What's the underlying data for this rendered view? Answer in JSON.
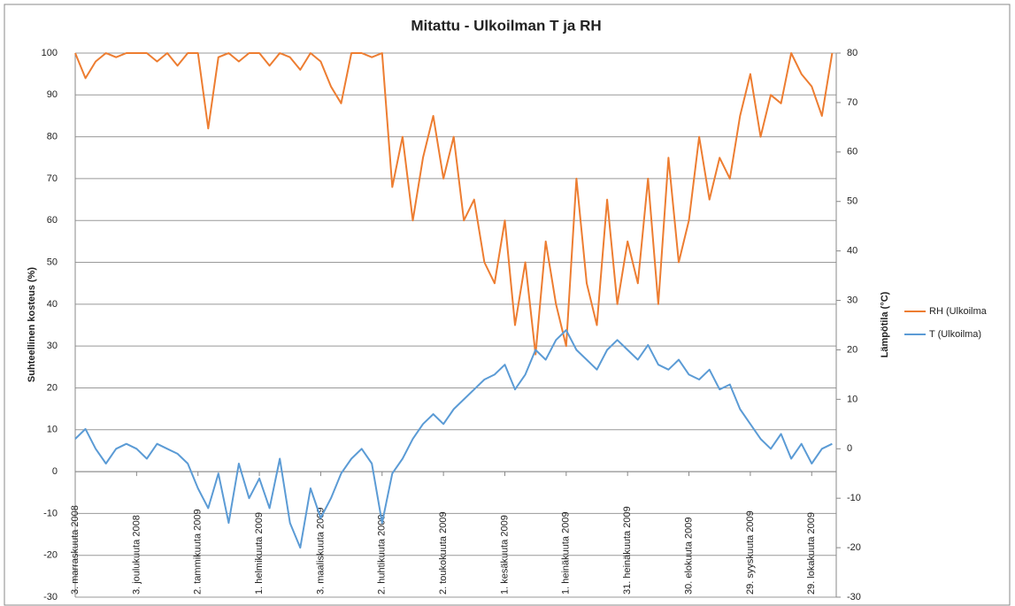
{
  "chart_data": {
    "type": "line",
    "title": "Mitattu - Ulkoilman T ja RH",
    "y_label": "Suhteellinen kosteus (%)",
    "y2_label": "Lämpötila (°C)",
    "grid": true,
    "legend": "right",
    "xlim": [
      "2008-11-03",
      "2009-11-10"
    ],
    "xticks": [
      {
        "value": "2008-11-03",
        "label": "3. marraskuuta 2008"
      },
      {
        "value": "2008-12-03",
        "label": "3. joulukuuta 2008"
      },
      {
        "value": "2009-01-02",
        "label": "2. tammikuuta 2009"
      },
      {
        "value": "2009-02-01",
        "label": "1. helmikuuta 2009"
      },
      {
        "value": "2009-03-03",
        "label": "3. maaliskuuta 2009"
      },
      {
        "value": "2009-04-02",
        "label": "2. huhtikuuta 2009"
      },
      {
        "value": "2009-05-02",
        "label": "2. toukokuuta 2009"
      },
      {
        "value": "2009-06-01",
        "label": "1. kesäkuuta 2009"
      },
      {
        "value": "2009-07-01",
        "label": "1. heinäkuuta 2009"
      },
      {
        "value": "2009-07-31",
        "label": "31. heinäkuuta 2009"
      },
      {
        "value": "2009-08-30",
        "label": "30. elokuuta 2009"
      },
      {
        "value": "2009-09-29",
        "label": "29. syyskuuta 2009"
      },
      {
        "value": "2009-10-29",
        "label": "29. lokakuuta 2009"
      }
    ],
    "ylim": [
      -30,
      100
    ],
    "yticks": [
      -30,
      -20,
      -10,
      0,
      10,
      20,
      30,
      40,
      50,
      60,
      70,
      80,
      90,
      100
    ],
    "y2lim": [
      -30,
      80
    ],
    "y2ticks": [
      -30,
      -20,
      -10,
      0,
      10,
      20,
      30,
      40,
      50,
      60,
      70,
      80
    ],
    "x": [
      "2008-11-03",
      "2008-11-08",
      "2008-11-13",
      "2008-11-18",
      "2008-11-23",
      "2008-11-28",
      "2008-12-03",
      "2008-12-08",
      "2008-12-13",
      "2008-12-18",
      "2008-12-23",
      "2008-12-28",
      "2009-01-02",
      "2009-01-07",
      "2009-01-12",
      "2009-01-17",
      "2009-01-22",
      "2009-01-27",
      "2009-02-01",
      "2009-02-06",
      "2009-02-11",
      "2009-02-16",
      "2009-02-21",
      "2009-02-26",
      "2009-03-03",
      "2009-03-08",
      "2009-03-13",
      "2009-03-18",
      "2009-03-23",
      "2009-03-28",
      "2009-04-02",
      "2009-04-07",
      "2009-04-12",
      "2009-04-17",
      "2009-04-22",
      "2009-04-27",
      "2009-05-02",
      "2009-05-07",
      "2009-05-12",
      "2009-05-17",
      "2009-05-22",
      "2009-05-27",
      "2009-06-01",
      "2009-06-06",
      "2009-06-11",
      "2009-06-16",
      "2009-06-21",
      "2009-06-26",
      "2009-07-01",
      "2009-07-06",
      "2009-07-11",
      "2009-07-16",
      "2009-07-21",
      "2009-07-26",
      "2009-07-31",
      "2009-08-05",
      "2009-08-10",
      "2009-08-15",
      "2009-08-20",
      "2009-08-25",
      "2009-08-30",
      "2009-09-04",
      "2009-09-09",
      "2009-09-14",
      "2009-09-19",
      "2009-09-24",
      "2009-09-29",
      "2009-10-04",
      "2009-10-09",
      "2009-10-14",
      "2009-10-19",
      "2009-10-24",
      "2009-10-29",
      "2009-11-03",
      "2009-11-08"
    ],
    "series": [
      {
        "name": "RH (Ulkoilma",
        "color": "#ed7d31",
        "axis": "y",
        "values": [
          100,
          94,
          98,
          100,
          99,
          100,
          100,
          100,
          98,
          100,
          97,
          100,
          100,
          82,
          99,
          100,
          98,
          100,
          100,
          97,
          100,
          99,
          96,
          100,
          98,
          92,
          88,
          100,
          100,
          99,
          100,
          68,
          80,
          60,
          75,
          85,
          70,
          80,
          60,
          65,
          50,
          45,
          60,
          35,
          50,
          28,
          55,
          40,
          30,
          70,
          45,
          35,
          65,
          40,
          55,
          45,
          70,
          40,
          75,
          50,
          60,
          80,
          65,
          75,
          70,
          85,
          95,
          80,
          90,
          88,
          100,
          95,
          92,
          85,
          100
        ]
      },
      {
        "name": "T (Ulkoilma)",
        "color": "#5b9bd5",
        "axis": "y2",
        "values": [
          2,
          4,
          0,
          -3,
          0,
          1,
          0,
          -2,
          1,
          0,
          -1,
          -3,
          -8,
          -12,
          -5,
          -15,
          -3,
          -10,
          -6,
          -12,
          -2,
          -15,
          -20,
          -8,
          -14,
          -10,
          -5,
          -2,
          0,
          -3,
          -15,
          -5,
          -2,
          2,
          5,
          7,
          5,
          8,
          10,
          12,
          14,
          15,
          17,
          12,
          15,
          20,
          18,
          22,
          24,
          20,
          18,
          16,
          20,
          22,
          20,
          18,
          21,
          17,
          16,
          18,
          15,
          14,
          16,
          12,
          13,
          8,
          5,
          2,
          0,
          3,
          -2,
          1,
          -3,
          0,
          1
        ]
      }
    ]
  }
}
